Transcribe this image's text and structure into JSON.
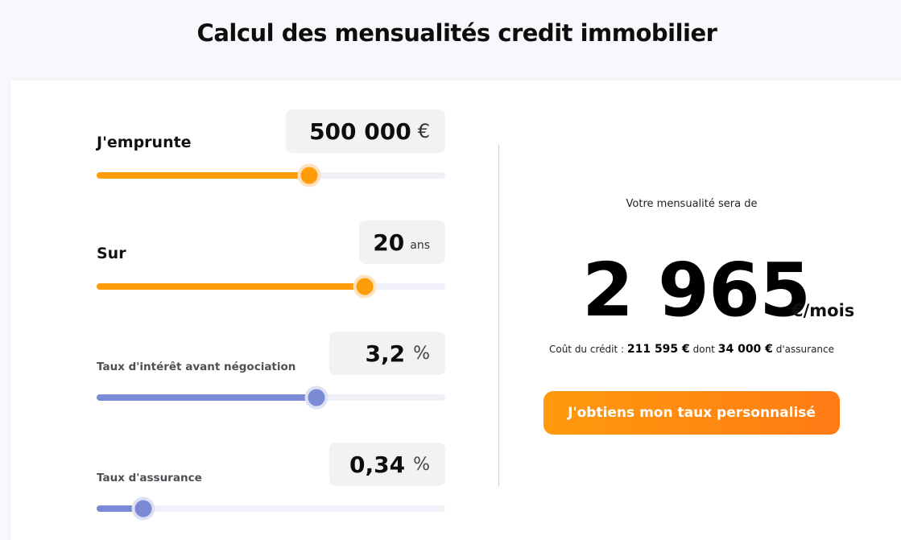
{
  "page": {
    "title": "Calcul des mensualités credit immobilier"
  },
  "sliders": [
    {
      "label": "J'emprunte",
      "value": "500 000",
      "unit": "€",
      "fraction": 0.61,
      "color": "#fe9c0a"
    },
    {
      "label": "Sur",
      "value": "20",
      "unit": "ans",
      "fraction": 0.77,
      "color": "#fe9c0a"
    },
    {
      "label": "Taux d'intérêt avant négociation",
      "value": "3,2",
      "unit": "%",
      "fraction": 0.63,
      "color": "#7a8ad5"
    },
    {
      "label": "Taux d'assurance",
      "value": "0,34",
      "unit": "%",
      "fraction": 0.135,
      "color": "#7a8ad5"
    }
  ],
  "result": {
    "intro": "Votre mensualité sera de",
    "amount": "2 965",
    "unit": "€/mois",
    "cost_prefix": "Coût du crédit :",
    "cost_total": "211 595 €",
    "cost_middle": "dont",
    "cost_insurance": "34 000 €",
    "cost_suffix": "d'assurance",
    "cta_label": "J'obtiens mon taux personnalisé"
  },
  "colors": {
    "accent": "#fe9c0a",
    "secondary": "#7a8ad5"
  }
}
